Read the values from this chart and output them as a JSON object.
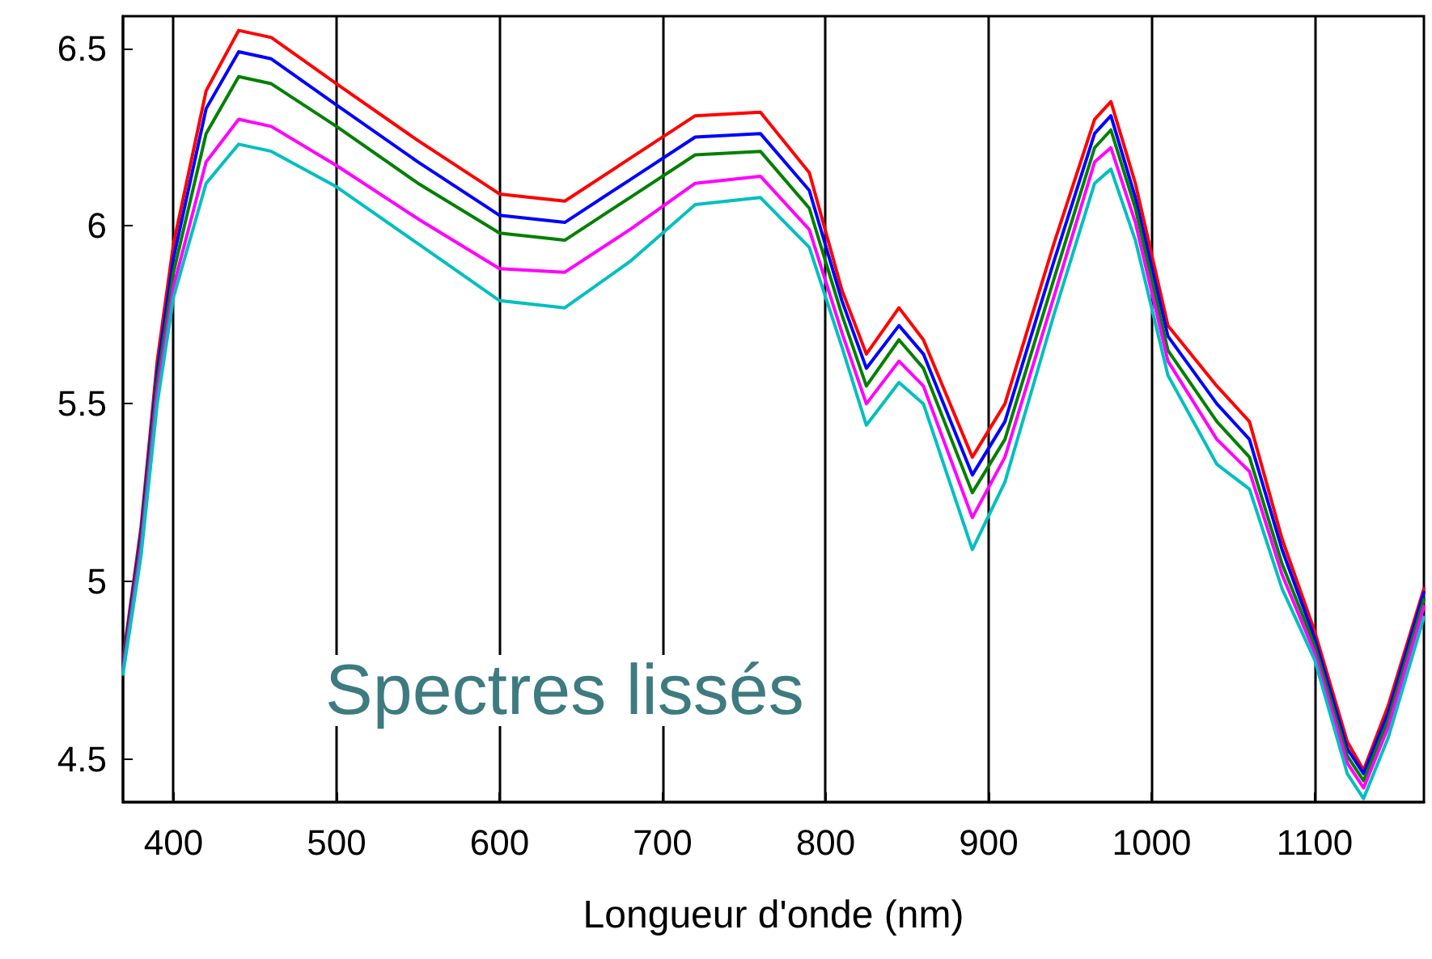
{
  "chart_data": {
    "type": "line",
    "xlabel": "Longueur d'onde (nm)",
    "annotations": [
      "Spectres lissés"
    ],
    "x": [
      369,
      380,
      390,
      400,
      420,
      440,
      460,
      500,
      550,
      600,
      640,
      680,
      720,
      760,
      790,
      810,
      825,
      845,
      860,
      890,
      910,
      940,
      965,
      975,
      990,
      1010,
      1040,
      1060,
      1080,
      1100,
      1120,
      1130,
      1145,
      1167
    ],
    "series": [
      {
        "color": "#ff0000",
        "values": [
          4.78,
          5.15,
          5.62,
          5.95,
          6.38,
          6.55,
          6.53,
          6.4,
          6.24,
          6.09,
          6.07,
          6.19,
          6.31,
          6.32,
          6.15,
          5.82,
          5.64,
          5.77,
          5.68,
          5.35,
          5.5,
          5.95,
          6.3,
          6.35,
          6.12,
          5.72,
          5.55,
          5.45,
          5.12,
          4.86,
          4.55,
          4.47,
          4.65,
          4.98
        ]
      },
      {
        "color": "#0000ff",
        "values": [
          4.77,
          5.13,
          5.59,
          5.91,
          6.33,
          6.49,
          6.47,
          6.34,
          6.18,
          6.03,
          6.01,
          6.13,
          6.25,
          6.26,
          6.1,
          5.79,
          5.6,
          5.72,
          5.64,
          5.3,
          5.45,
          5.9,
          6.26,
          6.31,
          6.08,
          5.69,
          5.5,
          5.4,
          5.09,
          4.84,
          4.53,
          4.46,
          4.63,
          4.97
        ]
      },
      {
        "color": "#008000",
        "values": [
          4.76,
          5.11,
          5.56,
          5.87,
          6.26,
          6.42,
          6.4,
          6.28,
          6.12,
          5.98,
          5.96,
          6.08,
          6.2,
          6.21,
          6.05,
          5.75,
          5.55,
          5.68,
          5.6,
          5.25,
          5.4,
          5.85,
          6.22,
          6.27,
          6.05,
          5.65,
          5.45,
          5.35,
          5.05,
          4.82,
          4.51,
          4.44,
          4.61,
          4.95
        ]
      },
      {
        "color": "#ff00ff",
        "values": [
          4.75,
          5.09,
          5.53,
          5.83,
          6.18,
          6.3,
          6.28,
          6.17,
          6.02,
          5.88,
          5.87,
          5.99,
          6.12,
          6.14,
          5.99,
          5.7,
          5.5,
          5.62,
          5.55,
          5.18,
          5.35,
          5.8,
          6.18,
          6.22,
          6.01,
          5.62,
          5.4,
          5.31,
          5.02,
          4.8,
          4.49,
          4.42,
          4.59,
          4.93
        ]
      },
      {
        "color": "#00bfbf",
        "values": [
          4.74,
          5.07,
          5.5,
          5.8,
          6.12,
          6.23,
          6.21,
          6.11,
          5.95,
          5.79,
          5.77,
          5.9,
          6.06,
          6.08,
          5.94,
          5.66,
          5.44,
          5.56,
          5.5,
          5.09,
          5.28,
          5.75,
          6.12,
          6.16,
          5.96,
          5.58,
          5.33,
          5.26,
          4.98,
          4.78,
          4.46,
          4.39,
          4.56,
          4.9
        ]
      }
    ],
    "xlim": [
      369,
      1167
    ],
    "ylim": [
      4.38,
      6.59
    ],
    "xticks": [
      400,
      500,
      600,
      700,
      800,
      900,
      1000,
      1100
    ],
    "yticks": [
      4.5,
      5,
      5.5,
      6,
      6.5
    ],
    "grid": "x",
    "marker": "none",
    "line_style": "solid"
  }
}
